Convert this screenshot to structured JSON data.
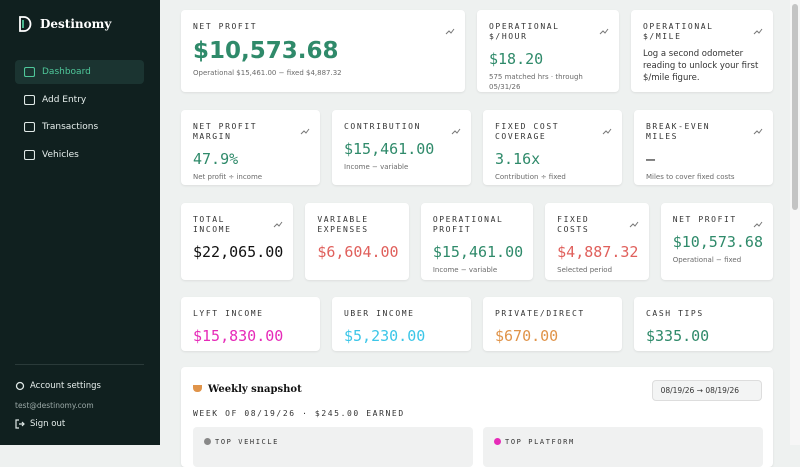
{
  "sidebar": {
    "brand": "Destinomy",
    "nav": [
      "Dashboard",
      "Add Entry",
      "Transactions",
      "Vehicles"
    ],
    "account": "Account settings",
    "email": "test@destinomy.com",
    "signout": "Sign out"
  },
  "rows": [
    [
      {
        "label": "NET PROFIT",
        "value": "$10,573.68",
        "note": "Operational $15,461.00 − fixed $4,887.32",
        "color": "#2f8a6a"
      },
      {
        "label": "OPERATIONAL $/HOUR",
        "value": "$18.20",
        "note": "575 matched hrs · through 05/31/26",
        "color": "#2f8a6a"
      },
      {
        "label": "OPERATIONAL $/MILE",
        "note": "Log a second odometer reading to unlock your first $/mile figure."
      }
    ],
    [
      {
        "label": "NET PROFIT MARGIN",
        "value": "47.9%",
        "note": "Net profit ÷ income",
        "color": "#2f8a6a"
      },
      {
        "label": "CONTRIBUTION",
        "value": "$15,461.00",
        "note": "Income − variable",
        "color": "#2f8a6a"
      },
      {
        "label": "FIXED COST COVERAGE",
        "value": "3.16x",
        "note": "Contribution ÷ fixed",
        "color": "#2f8a6a"
      },
      {
        "label": "BREAK-EVEN MILES",
        "value": "—",
        "note": "Miles to cover fixed costs",
        "color": "#111111"
      }
    ],
    [
      {
        "label": "TOTAL INCOME",
        "value": "$22,065.00",
        "color": "#111111"
      },
      {
        "label": "VARIABLE EXPENSES",
        "value": "$6,604.00",
        "color": "#e0605c"
      },
      {
        "label": "OPERATIONAL PROFIT",
        "value": "$15,461.00",
        "note": "Income − variable",
        "color": "#2f8a6a"
      },
      {
        "label": "FIXED COSTS",
        "value": "$4,887.32",
        "note": "Selected period",
        "color": "#e0605c"
      },
      {
        "label": "NET PROFIT",
        "value": "$10,573.68",
        "note": "Operational − fixed",
        "color": "#2f8a6a"
      }
    ],
    [
      {
        "label": "LYFT INCOME",
        "value": "$15,830.00",
        "color": "#e62bb8"
      },
      {
        "label": "UBER INCOME",
        "value": "$5,230.00",
        "color": "#3cc6e8"
      },
      {
        "label": "PRIVATE/DIRECT",
        "value": "$670.00",
        "color": "#e0944a"
      },
      {
        "label": "CASH TIPS",
        "value": "$335.00",
        "color": "#2f8a6a"
      }
    ]
  ],
  "snapshot": {
    "title": "Weekly snapshot",
    "range": "08/19/26 → 08/19/26",
    "week": "WEEK OF 08/19/26 · $245.00 EARNED",
    "cards": [
      "TOP VEHICLE",
      "TOP PLATFORM"
    ]
  }
}
